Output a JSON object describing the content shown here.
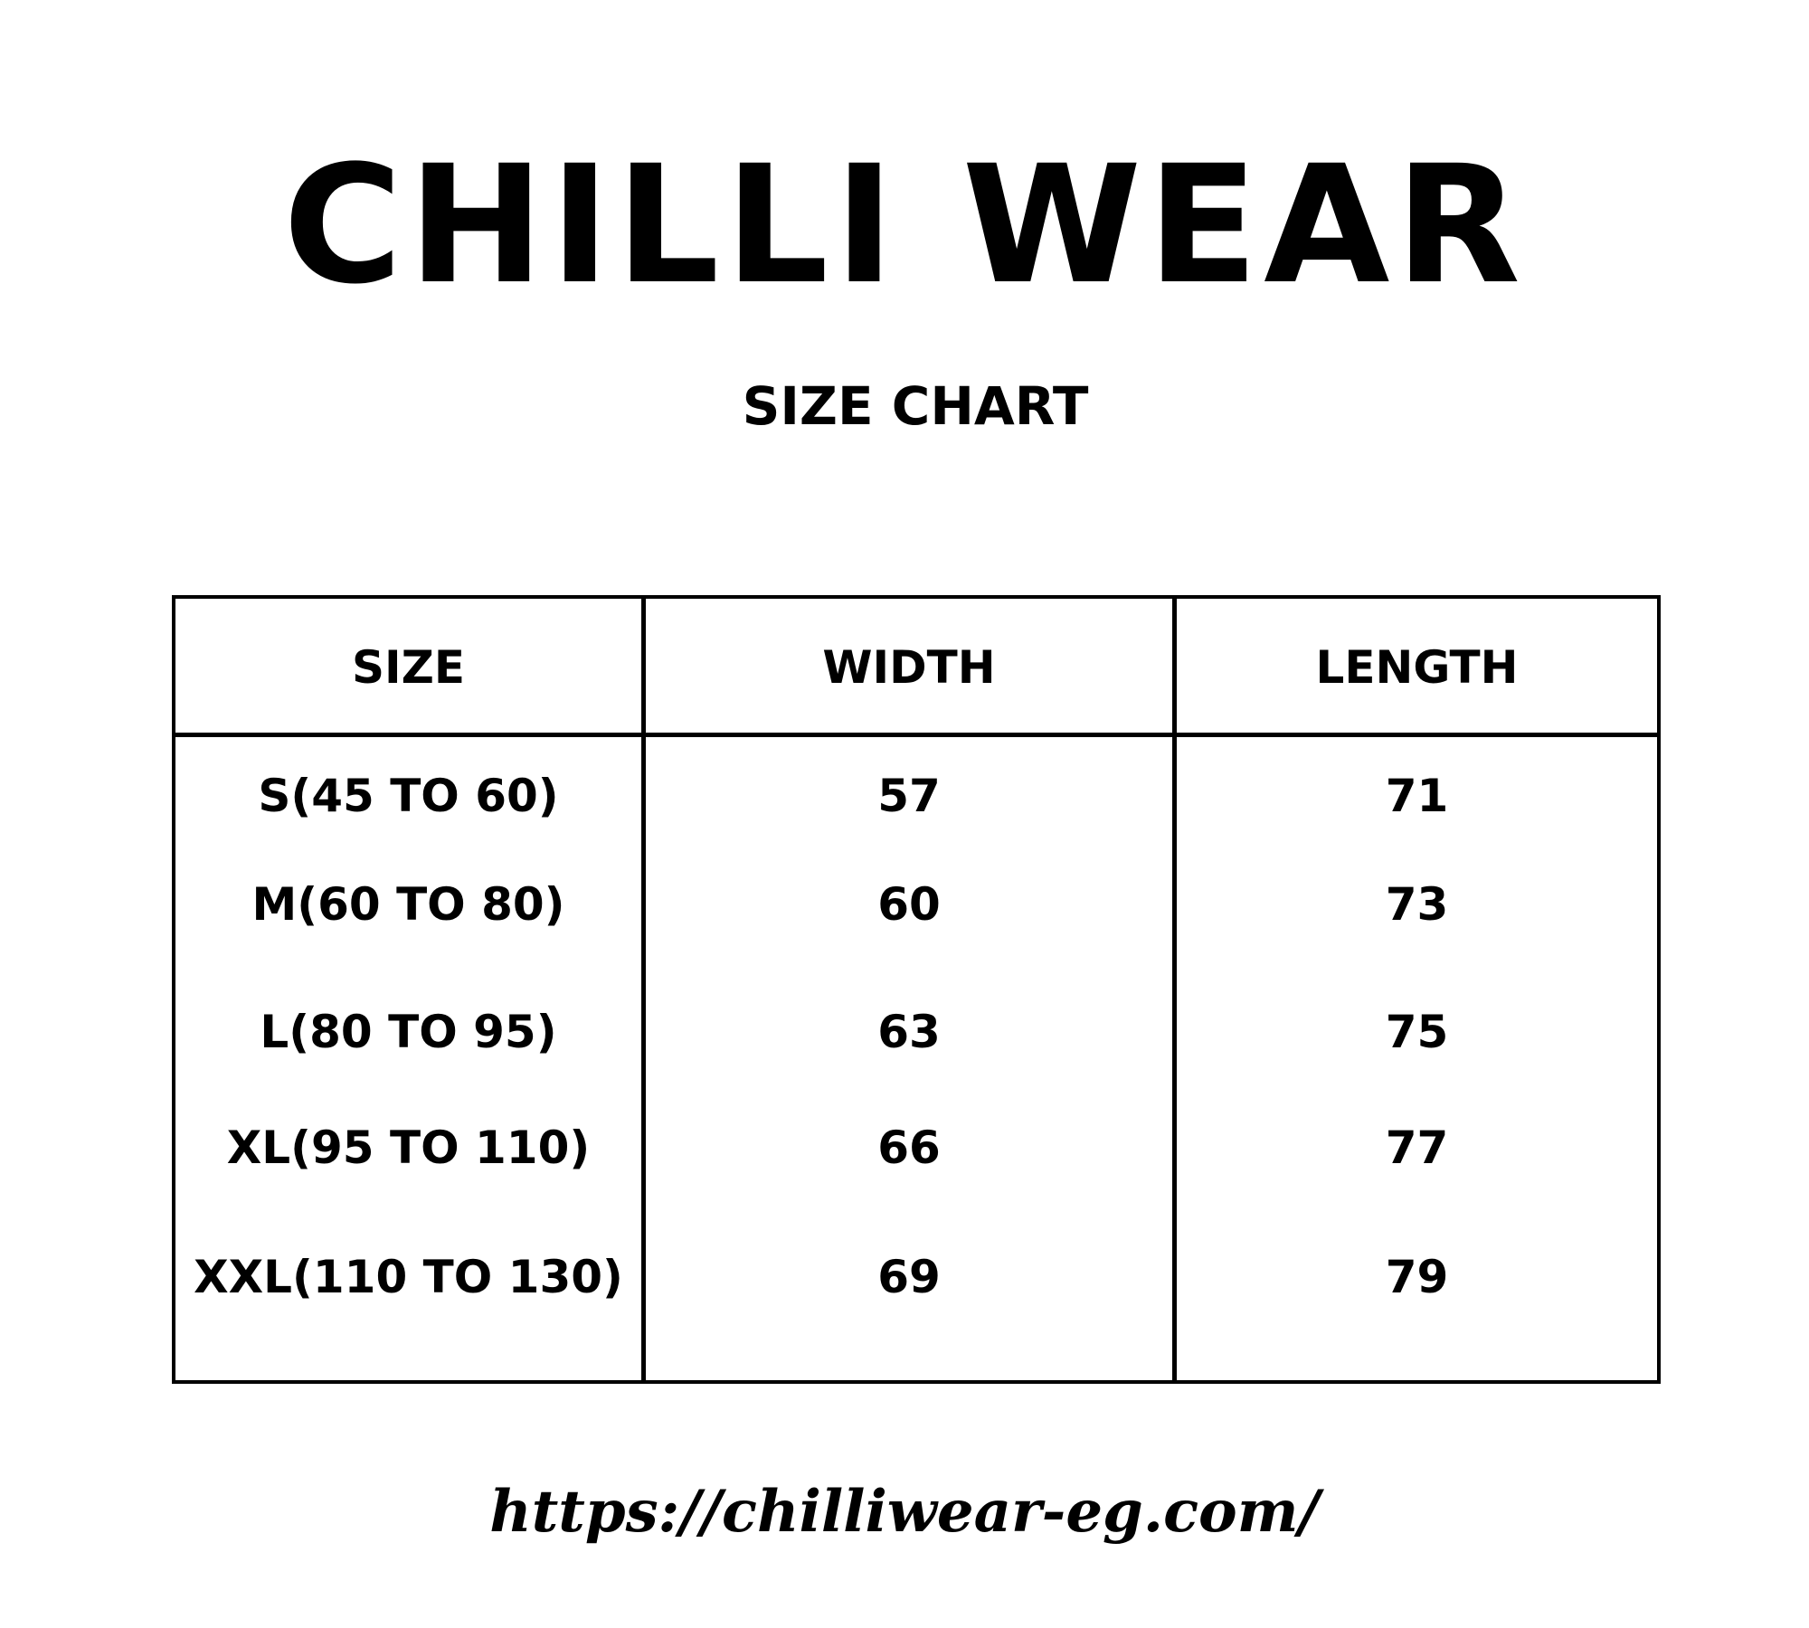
{
  "title": "CHILLI WEAR",
  "subtitle": "SIZE CHART",
  "table": {
    "headers": [
      "SIZE",
      "WIDTH",
      "LENGTH"
    ],
    "rows": [
      [
        "S(45 TO 60)",
        "57",
        "71"
      ],
      [
        "M(60 TO 80)",
        "60",
        "73"
      ],
      [
        "L(80 TO 95)",
        "63",
        "75"
      ],
      [
        "XL(95 TO 110)",
        "66",
        "77"
      ],
      [
        "XXL(110 TO 130)",
        "69",
        "79"
      ]
    ]
  },
  "footer_url": "https://chilliwear-eg.com/"
}
